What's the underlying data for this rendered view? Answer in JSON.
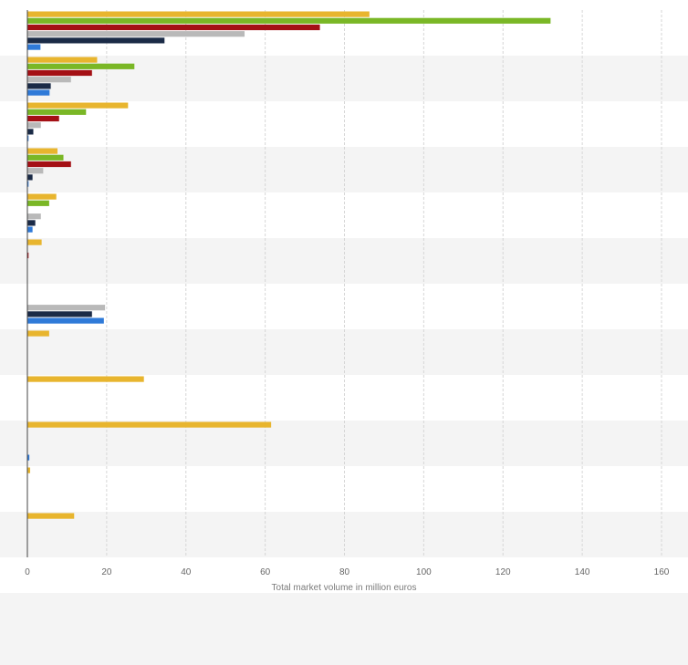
{
  "chart_data": {
    "type": "bar",
    "orientation": "horizontal",
    "title": "",
    "xlabel": "Total market volume in million euros",
    "ylabel": "",
    "xlim": [
      0,
      160
    ],
    "x_ticks": [
      "0",
      "20",
      "40",
      "60",
      "80",
      "100",
      "120",
      "140",
      "160"
    ],
    "grid": true,
    "legend": "none",
    "categories": [
      "",
      "",
      "",
      "",
      "",
      "",
      "",
      "",
      "",
      "",
      "",
      ""
    ],
    "series": [
      {
        "color": "#e8b52e",
        "values": [
          86.3,
          17.6,
          25.4,
          7.6,
          7.3,
          3.6,
          null,
          5.5,
          29.4,
          61.5,
          0.7,
          11.8
        ]
      },
      {
        "color": "#7ab726",
        "values": [
          132.0,
          27.0,
          14.8,
          9.1,
          5.5,
          null,
          null,
          null,
          null,
          null,
          null,
          null
        ]
      },
      {
        "color": "#a41015",
        "values": [
          73.8,
          16.3,
          8.0,
          11.0,
          null,
          0.3,
          null,
          null,
          null,
          null,
          null,
          null
        ]
      },
      {
        "color": "#b9b9b9",
        "values": [
          54.8,
          11.0,
          3.4,
          4.0,
          3.4,
          null,
          19.6,
          null,
          null,
          null,
          null,
          null
        ]
      },
      {
        "color": "#1b2b47",
        "values": [
          34.6,
          5.9,
          1.5,
          1.3,
          2.0,
          null,
          16.3,
          null,
          null,
          null,
          null,
          null
        ]
      },
      {
        "color": "#2f7ad8",
        "values": [
          3.3,
          5.6,
          0.3,
          0.3,
          1.3,
          null,
          19.3,
          null,
          null,
          0.5,
          null,
          null
        ]
      }
    ]
  }
}
